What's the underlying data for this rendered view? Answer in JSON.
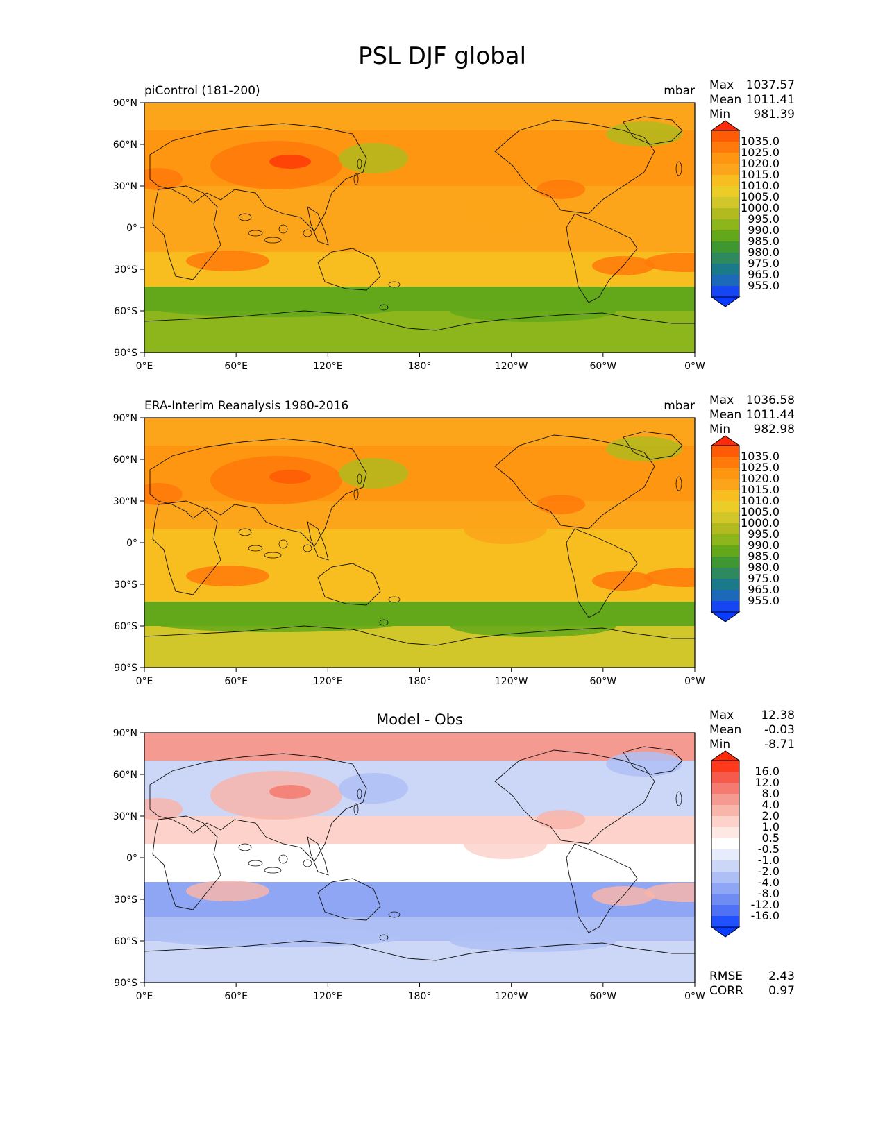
{
  "figure": {
    "title": "PSL DJF global"
  },
  "panels": [
    {
      "title_left": "piControl (181-200)",
      "title_center": "",
      "units": "mbar",
      "stats": [
        {
          "label": "Max",
          "value": "1037.57"
        },
        {
          "label": "Mean",
          "value": "1011.41"
        },
        {
          "label": "Min",
          "value": "981.39"
        }
      ],
      "colorbar_levels": [
        "1035.0",
        "1025.0",
        "1020.0",
        "1015.0",
        "1010.0",
        "1005.0",
        "1000.0",
        "995.0",
        "990.0",
        "985.0",
        "980.0",
        "975.0",
        "965.0",
        "955.0"
      ],
      "colorbar_colors": [
        "#ff5a05",
        "#ff7a0a",
        "#ff9612",
        "#fca51a",
        "#f8be20",
        "#eccd28",
        "#d1c62a",
        "#b1ba1f",
        "#8db51c",
        "#63a81a",
        "#3f9732",
        "#2e8a5e",
        "#1a7a8a",
        "#1b69b8",
        "#1546f2"
      ],
      "colorbar_extend_top": "#ff2a0a",
      "colorbar_extend_bottom": "#0a3cff",
      "map_colors": {
        "polar_north": "#fca51a",
        "mid_high": "#ff9612",
        "subtropics": "#fca51a",
        "tropics": "#fca51a",
        "south_mid": "#f8be20",
        "storm_track": "#63a81a",
        "antarctic": "#8db51c",
        "highs": "#ff7a0a",
        "core_high": "#ff3a08",
        "lows": "#b1ba1f"
      },
      "bottom_stats": []
    },
    {
      "title_left": "ERA-Interim Reanalysis 1980-2016",
      "title_center": "",
      "units": "mbar",
      "stats": [
        {
          "label": "Max",
          "value": "1036.58"
        },
        {
          "label": "Mean",
          "value": "1011.44"
        },
        {
          "label": "Min",
          "value": "982.98"
        }
      ],
      "colorbar_levels": [
        "1035.0",
        "1025.0",
        "1020.0",
        "1015.0",
        "1010.0",
        "1005.0",
        "1000.0",
        "995.0",
        "990.0",
        "985.0",
        "980.0",
        "975.0",
        "965.0",
        "955.0"
      ],
      "colorbar_colors": [
        "#ff5a05",
        "#ff7a0a",
        "#ff9612",
        "#fca51a",
        "#f8be20",
        "#eccd28",
        "#d1c62a",
        "#b1ba1f",
        "#8db51c",
        "#63a81a",
        "#3f9732",
        "#2e8a5e",
        "#1a7a8a",
        "#1b69b8",
        "#1546f2"
      ],
      "colorbar_extend_top": "#ff2a0a",
      "colorbar_extend_bottom": "#0a3cff",
      "map_colors": {
        "polar_north": "#fca51a",
        "mid_high": "#ff9612",
        "subtropics": "#fca51a",
        "tropics": "#f8be20",
        "south_mid": "#f8be20",
        "storm_track": "#63a81a",
        "antarctic": "#d1c62a",
        "highs": "#ff7a0a",
        "core_high": "#ff5a05",
        "lows": "#b1ba1f"
      },
      "bottom_stats": []
    },
    {
      "title_left": "",
      "title_center": "Model - Obs",
      "units": "",
      "stats": [
        {
          "label": "Max",
          "value": "12.38"
        },
        {
          "label": "Mean",
          "value": "-0.03"
        },
        {
          "label": "Min",
          "value": "-8.71"
        }
      ],
      "colorbar_levels": [
        "16.0",
        "12.0",
        "8.0",
        "4.0",
        "2.0",
        "1.0",
        "0.5",
        "-0.5",
        "-1.0",
        "-2.0",
        "-4.0",
        "-8.0",
        "-12.0",
        "-16.0"
      ],
      "colorbar_colors": [
        "#ff3a1c",
        "#f55a4a",
        "#f57a70",
        "#f59a90",
        "#f8b5aa",
        "#fcd2ca",
        "#fde8e4",
        "#ffffff",
        "#e6ecfb",
        "#ccd6f7",
        "#aebff5",
        "#8ea6f3",
        "#6f8cf2",
        "#4f72f5",
        "#2050ff"
      ],
      "colorbar_extend_top": "#ff2a0a",
      "colorbar_extend_bottom": "#0a3cff",
      "map_colors": {
        "polar_north": "#f59a90",
        "mid_high": "#ccd6f7",
        "subtropics": "#fcd2ca",
        "tropics": "#ffffff",
        "south_mid": "#8ea6f3",
        "storm_track": "#aebff5",
        "antarctic": "#ccd6f7",
        "highs": "#f8b5aa",
        "core_high": "#f57a70",
        "lows": "#aebff5"
      },
      "bottom_stats": [
        {
          "label": "RMSE",
          "value": "2.43"
        },
        {
          "label": "CORR",
          "value": "0.97"
        }
      ]
    }
  ],
  "axes": {
    "lat_ticks": [
      "90°N",
      "60°N",
      "30°N",
      "0°",
      "30°S",
      "60°S",
      "90°S"
    ],
    "lon_ticks": [
      "0°E",
      "60°E",
      "120°E",
      "180°",
      "120°W",
      "60°W",
      "0°W"
    ]
  }
}
